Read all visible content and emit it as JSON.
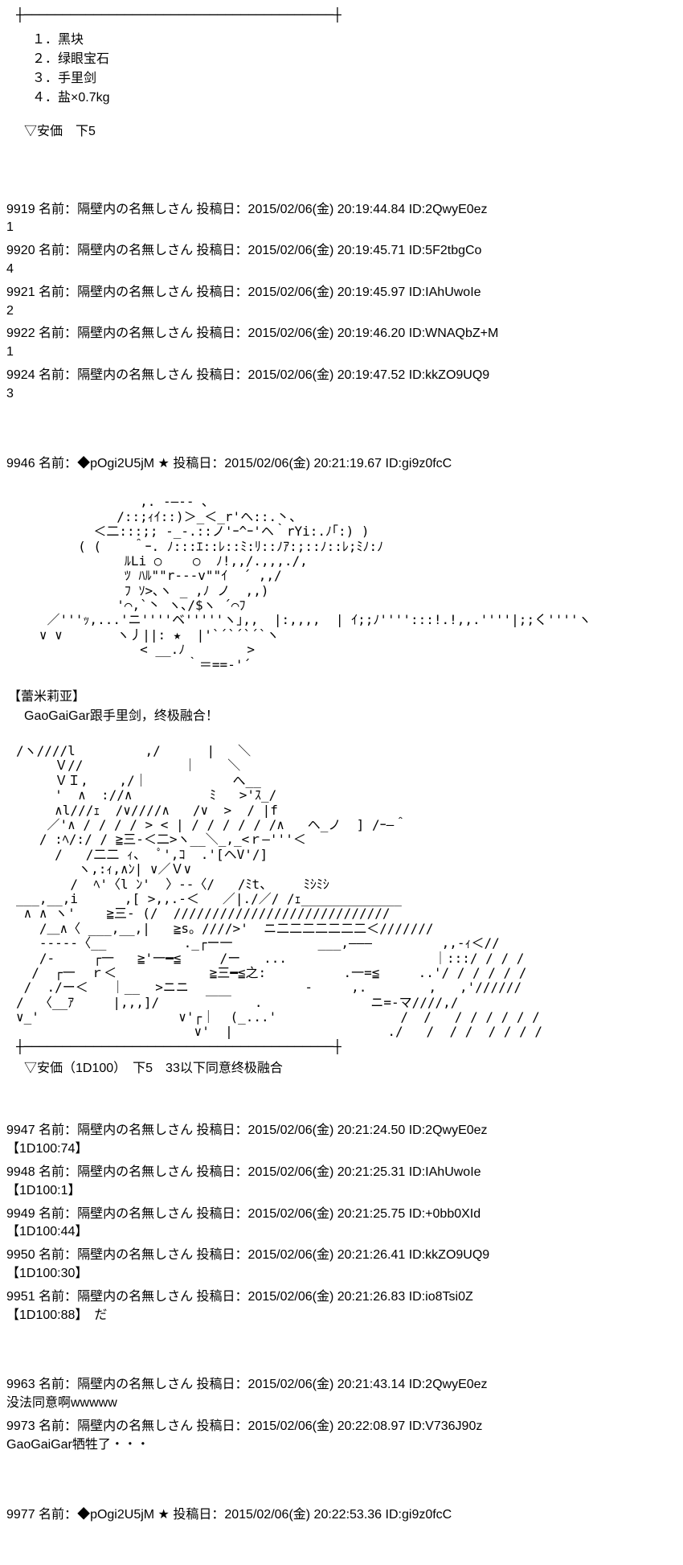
{
  "top_divider": "┼────────────────────────────────────────┼",
  "choices": [
    "１．黑块",
    "２．绿眼宝石",
    "３．手里剑",
    "４．盐×0.7kg"
  ],
  "anka1": "▽安価　下5",
  "posts_block1": [
    {
      "num": "9919",
      "name": "隔壁内の名無しさん",
      "date": "2015/02/06(金) 20:19:44.84",
      "id": "2QwyE0ez",
      "body": "1"
    },
    {
      "num": "9920",
      "name": "隔壁内の名無しさん",
      "date": "2015/02/06(金) 20:19:45.71",
      "id": "5F2tbgCo",
      "body": "4"
    },
    {
      "num": "9921",
      "name": "隔壁内の名無しさん",
      "date": "2015/02/06(金) 20:19:45.97",
      "id": "IAhUwoIe",
      "body": "2"
    },
    {
      "num": "9922",
      "name": "隔壁内の名無しさん",
      "date": "2015/02/06(金) 20:19:46.20",
      "id": "WNAQbZ+M",
      "body": "1"
    },
    {
      "num": "9924",
      "name": "隔壁内の名無しさん",
      "date": "2015/02/06(金) 20:19:47.52",
      "id": "kkZO9UQ9",
      "body": "3"
    }
  ],
  "gm_post1": {
    "num": "9946",
    "name": "◆pOgi2U5jM ★",
    "date": "2015/02/06(金) 20:21:19.67",
    "id": "gi9z0fcC"
  },
  "ascii1": "                ,. -―‐- ､\n             /::;ｨｲ::)＞_＜_r'ヘ::.丶、\n          ＜二:::;; -_‐.::ノ'ｰ^ｰ'ヘ｀rYi:.ﾉ｢:) )\n        ( (    ＾ｰ. ﾉ:::ｴ::ﾚ::ﾐ:ﾘ::ﾉｱ:;::ﾉ::ﾚ;ﾐﾉ:ﾉ\n              ﾙLi ○    ○  ﾉ!,,/.,,,./,\n              ﾂ ﾊﾙ\"\"r‐‐‐v\"\"ｲ  ´ ,,/\n              ﾌ ｿ>､ヽ _ ,ﾉ ノ  ,,)\n             '⌒,`丶 ヽ､/$ヽ ´⌒ﾌ\n    ／'''ｯ,...'ニ''''ベ'''''ヽ｣,,  |:,,,,  | ｲ;;ﾉ'''':::!.!,,.''''|;;く''''ヽ\n   ∨ ∨       ヽ丿||: ★  |'`´`´`´`ヽ\n                < __.ﾉ        >\n                      ｀＝==‐'´",
  "char_name": "【蕾米莉亚】",
  "char_line": "GaoGaiGar跟手里剑，终极融合！",
  "ascii2": "/ヽ////l         ,/      |   ＼\n     Ｖ//             ｜    ＼\n     ＶＩ,    ,/｜           へ__\n     '  ∧  ://∧          ﾐ   >'ｽ_/\n     ∧l///ｪ  /∨////∧   /∨  >  / |f\n    ／'∧ / / / / > < | / / / / / /∧   ヘ_ノ  ] /ｰ―＾\n   / :ﾍ/:/ / ≧三-＜二>ヽ__＼_,_<ｒ―'''＜\n     /   /二二 ｨ、  ﾟ',ｺ  .'[ヘV'/]\n        ヽ,:ｨ,∧ﾝ| ∨／Ｖ∨\n       /  ﾍ'〈l ﾝ'  〉--〈/   /ﾐt、    ﾐｼﾐｼ\n___,__,i      ,[ >,,.-＜   ／|./／/ /ｪ_____________\n ∧ ∧ ヽ'    ≧三- (/  ////////////////////////////\n   /＿∧〈 ___,__,|   ≧s。////>'  ニ二二二二二二二＜///////\n   -----〈__          ._┌ー一           ___,———         ,,-ｨ＜//\n   /-     ┌一   ≧'一━≦     /ー   ...                   ｜:::/ / / /\n  /  ┌一  ｒ＜            ≧三━≦之:          .一=≦     ..'/ / / / / /\n /  ./ー＜   ｜__  >ニニ               -     ,.        ,   ,'//////\n/  〈__ｱ     |,,,]/      ￣￣   .              ニ=-マ////,/\n∨_'                  ∨'┌｜  (_...'                /  /   / / / / / /\n                       ∨'  |                    ./   /  / /  / / / /",
  "divider_row": "┼────────────────────────────────────────┼",
  "anka2": "▽安価（1D100）　下5　33以下同意终极融合",
  "posts_block2": [
    {
      "num": "9947",
      "name": "隔壁内の名無しさん",
      "date": "2015/02/06(金) 20:21:24.50",
      "id": "2QwyE0ez",
      "body": "【1D100:74】"
    },
    {
      "num": "9948",
      "name": "隔壁内の名無しさん",
      "date": "2015/02/06(金) 20:21:25.31",
      "id": "IAhUwoIe",
      "body": "【1D100:1】"
    },
    {
      "num": "9949",
      "name": "隔壁内の名無しさん",
      "date": "2015/02/06(金) 20:21:25.75",
      "id": "+0bb0XId",
      "body": "【1D100:44】"
    },
    {
      "num": "9950",
      "name": "隔壁内の名無しさん",
      "date": "2015/02/06(金) 20:21:26.41",
      "id": "kkZO9UQ9",
      "body": "【1D100:30】"
    },
    {
      "num": "9951",
      "name": "隔壁内の名無しさん",
      "date": "2015/02/06(金) 20:21:26.83",
      "id": "io8Tsi0Z",
      "body": "【1D100:88】　だ"
    }
  ],
  "posts_block3": [
    {
      "num": "9963",
      "name": "隔壁内の名無しさん",
      "date": "2015/02/06(金) 20:21:43.14",
      "id": "2QwyE0ez",
      "body": "没法同意啊wwwww"
    },
    {
      "num": "9973",
      "name": "隔壁内の名無しさん",
      "date": "2015/02/06(金) 20:22:08.97",
      "id": "V736J90z",
      "body": "GaoGaiGar牺牲了・・・"
    }
  ],
  "gm_post2": {
    "num": "9977",
    "name": "◆pOgi2U5jM ★",
    "date": "2015/02/06(金) 20:22:53.36",
    "id": "gi9z0fcC"
  },
  "labels": {
    "name": "名前：",
    "date": "投稿日：",
    "id": "ID:"
  }
}
